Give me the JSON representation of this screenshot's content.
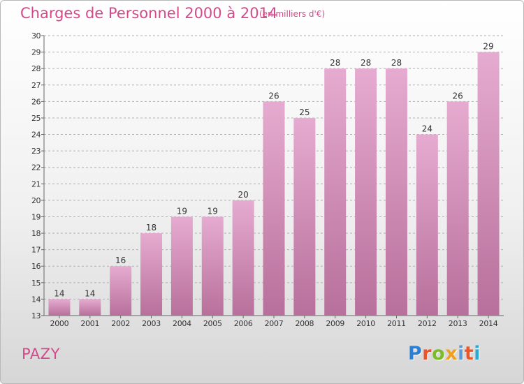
{
  "header": {
    "title": "Charges de Personnel 2000 à 2014",
    "subtitle": "(en milliers d'€)"
  },
  "footer": {
    "commune": "PAZY",
    "brand": "Proxiti",
    "brand_colors": [
      "#2d7fd6",
      "#e8562a",
      "#7cbb2a",
      "#f0a020",
      "#5a9ad8",
      "#e8562a",
      "#2aa9d6"
    ]
  },
  "colors": {
    "title": "#d34a8a",
    "bar_light": "#e6abd0",
    "bar_dark": "#b7709b",
    "axis": "#666666",
    "grid": "#b0b0b0"
  },
  "chart_data": {
    "type": "bar",
    "title": "Charges de Personnel 2000 à 2014",
    "subtitle": "(en milliers d'€)",
    "categories": [
      "2000",
      "2001",
      "2002",
      "2003",
      "2004",
      "2005",
      "2006",
      "2007",
      "2008",
      "2009",
      "2010",
      "2011",
      "2012",
      "2013",
      "2014"
    ],
    "values": [
      14,
      14,
      16,
      18,
      19,
      19,
      20,
      26,
      25,
      28,
      28,
      28,
      24,
      26,
      29
    ],
    "ylim": [
      13,
      30
    ],
    "yticks": [
      13,
      14,
      15,
      16,
      17,
      18,
      19,
      20,
      21,
      22,
      23,
      24,
      25,
      26,
      27,
      28,
      29,
      30
    ],
    "grid": "horizontal dashed",
    "data_labels": true,
    "xlabel": "",
    "ylabel": ""
  }
}
